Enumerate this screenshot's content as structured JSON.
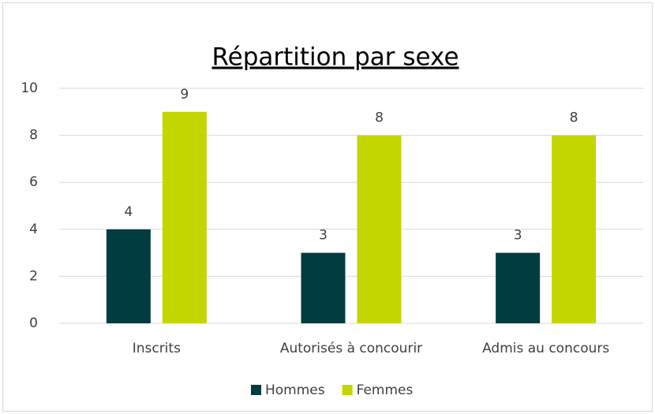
{
  "chart_data": {
    "type": "bar",
    "title": "Répartition par sexe",
    "categories": [
      "Inscrits",
      "Autorisés à concourir",
      "Admis au concours"
    ],
    "series": [
      {
        "name": "Hommes",
        "color": "#003c40",
        "values": [
          4,
          3,
          3
        ]
      },
      {
        "name": "Femmes",
        "color": "#c4d600",
        "values": [
          9,
          8,
          8
        ]
      }
    ],
    "ylim": [
      0,
      10
    ],
    "yticks": [
      0,
      2,
      4,
      6,
      8,
      10
    ],
    "grid": true,
    "legend": "bottom"
  }
}
